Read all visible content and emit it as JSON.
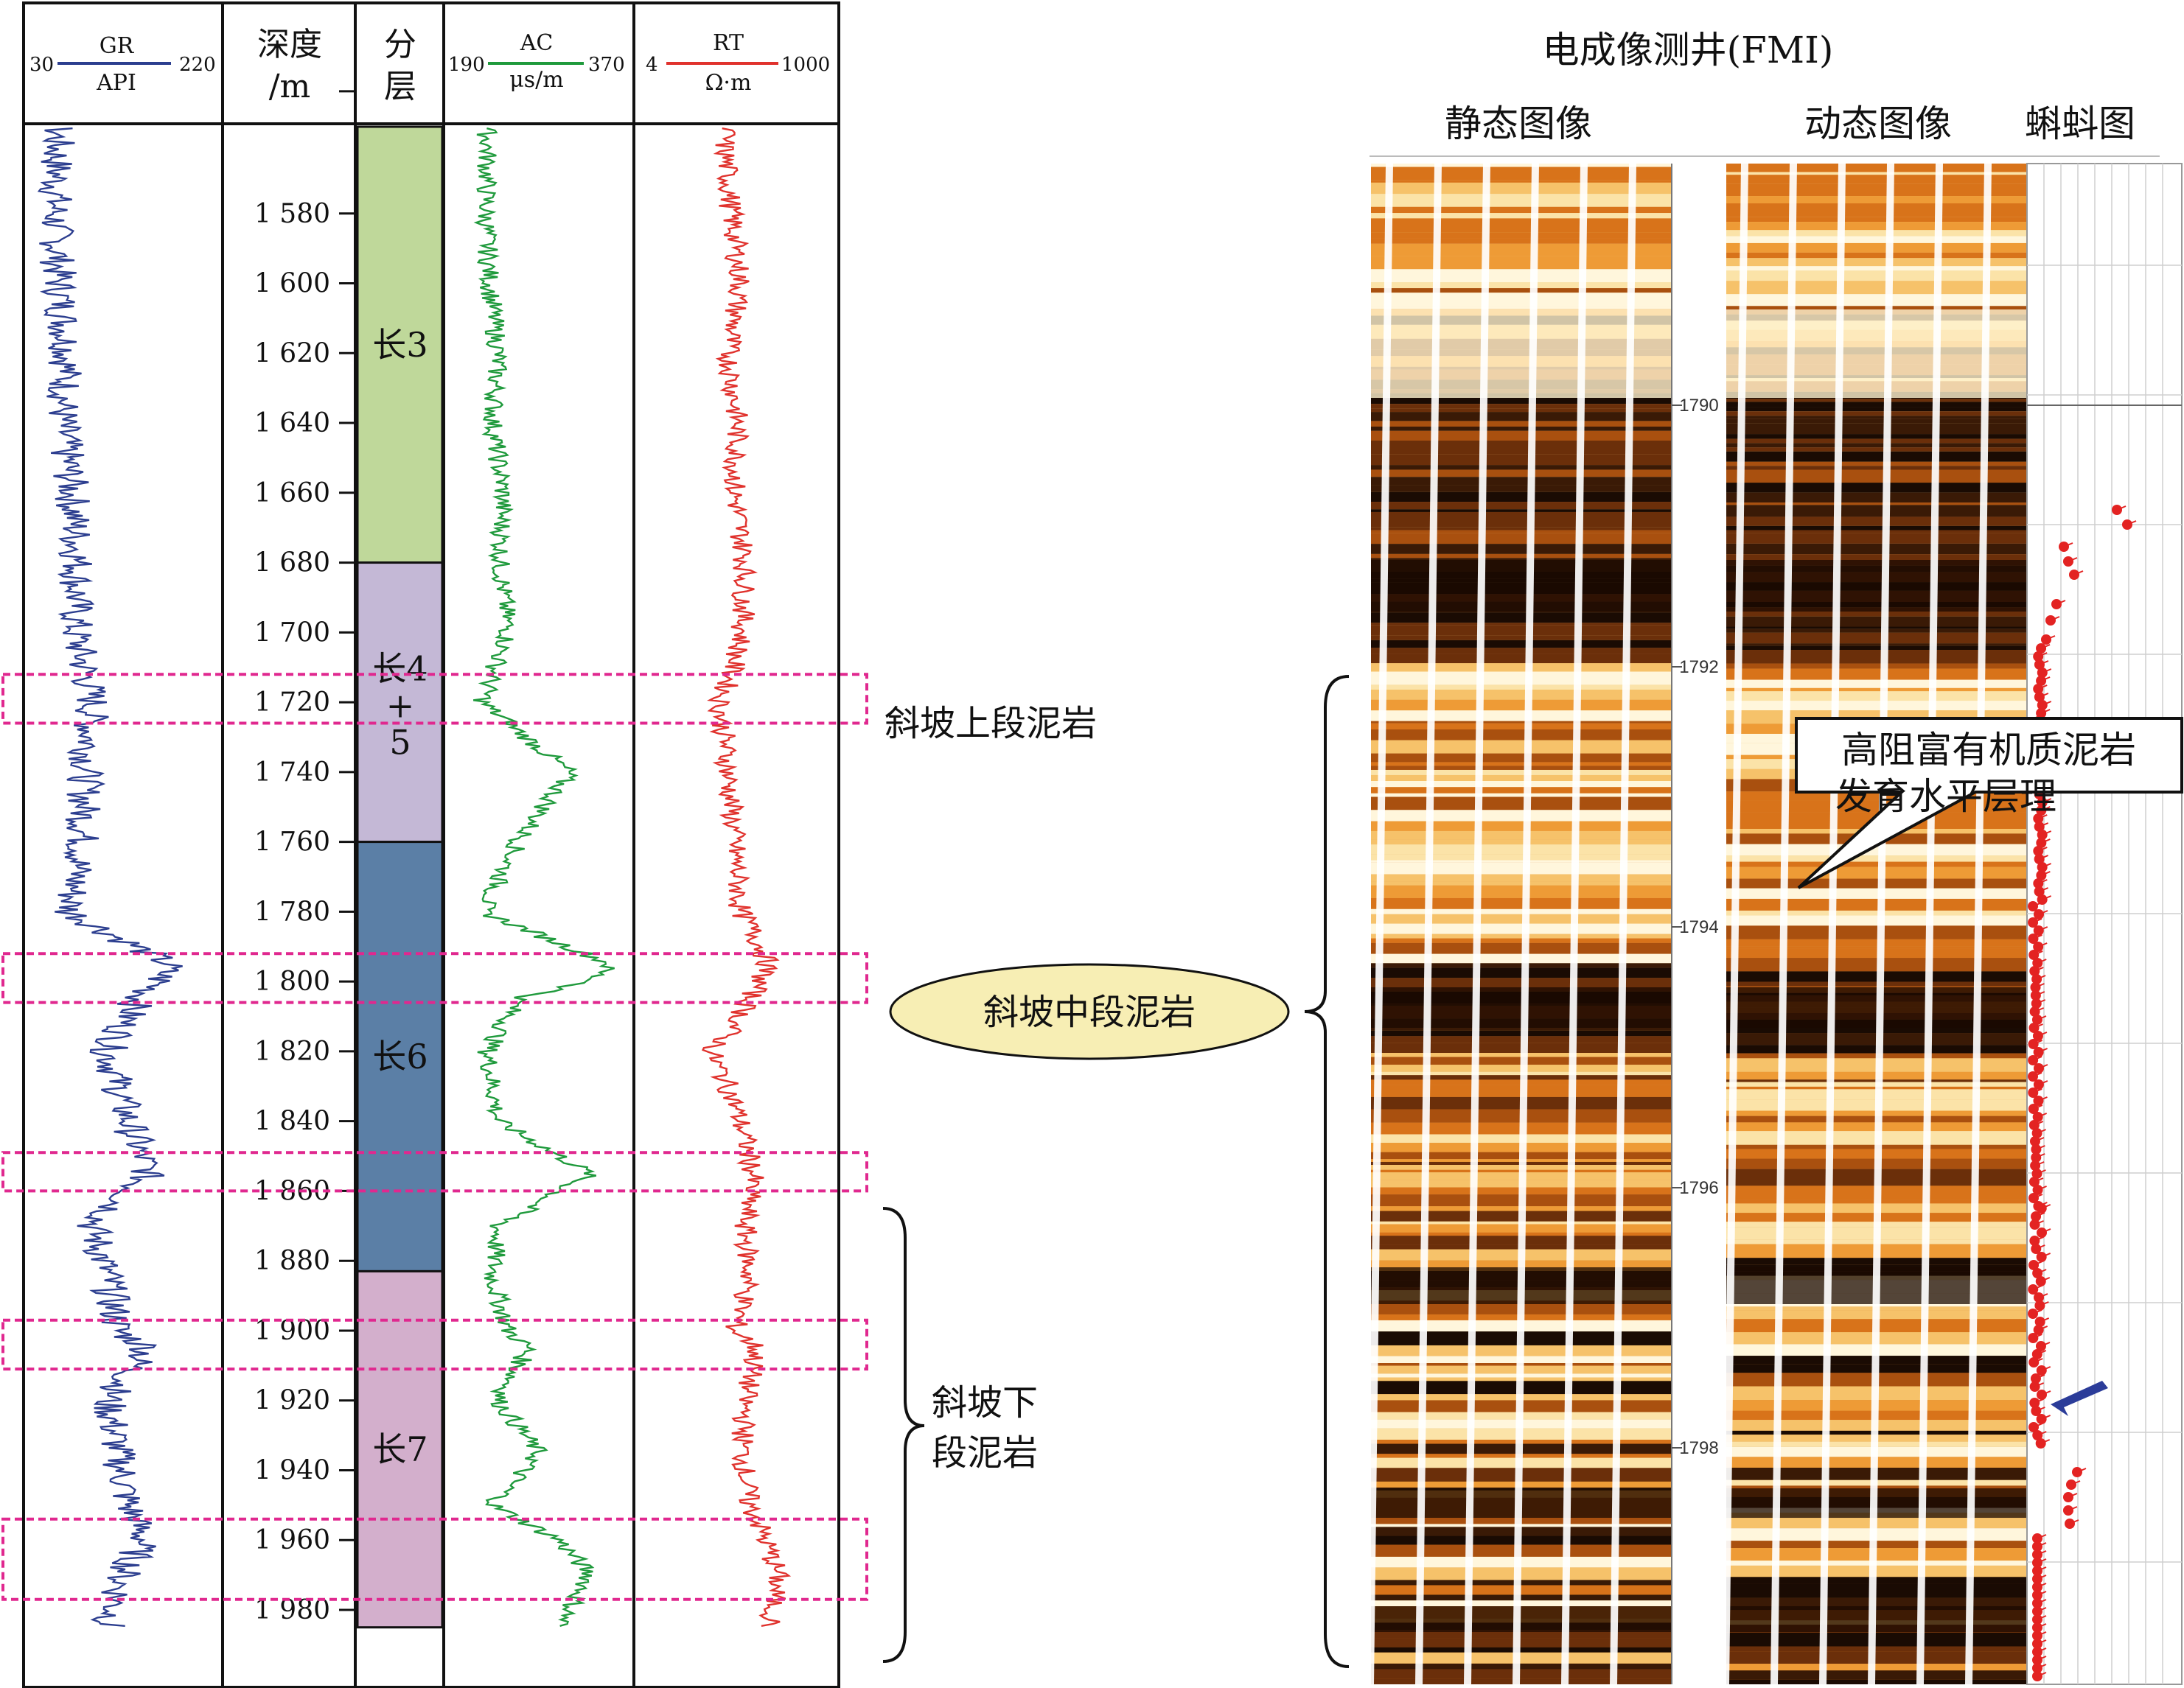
{
  "log_panel": {
    "tracks": {
      "gr": {
        "name": "GR",
        "unit": "API",
        "min": "30",
        "max": "220",
        "color": "#2c3e8f"
      },
      "depth": {
        "title_line1": "深度",
        "title_line2": "/m"
      },
      "layer": {
        "title_line1": "分",
        "title_line2": "层"
      },
      "ac": {
        "name": "AC",
        "unit": "μs/m",
        "min": "190",
        "max": "370",
        "color": "#1f9a3c"
      },
      "rt": {
        "name": "RT",
        "unit": "Ω·m",
        "min": "4",
        "max": "1000",
        "color": "#e0322d"
      }
    },
    "layers": [
      {
        "label": "长3",
        "top": 1540,
        "bottom": 1680,
        "color": "#bfd89a"
      },
      {
        "label_lines": [
          "长4",
          "+",
          "5"
        ],
        "top": 1680,
        "bottom": 1760,
        "color": "#c4b8d6"
      },
      {
        "label": "长6",
        "top": 1760,
        "bottom": 1883,
        "color": "#5b7fa6"
      },
      {
        "label": "长7",
        "top": 1883,
        "bottom": 1985,
        "color": "#d3afcc"
      }
    ],
    "highlight_boxes": [
      {
        "top": 1712,
        "bottom": 1726
      },
      {
        "top": 1792,
        "bottom": 1806
      },
      {
        "top": 1849,
        "bottom": 1860
      },
      {
        "top": 1897,
        "bottom": 1911
      },
      {
        "top": 1954,
        "bottom": 1977
      }
    ],
    "annotations": {
      "upper": "斜坡上段泥岩",
      "middle": "斜坡中段泥岩",
      "lower_line1": "斜坡下",
      "lower_line2": "段泥岩"
    },
    "box_color": "#e0288f",
    "ellipse_color": "#f7eeb4"
  },
  "chart_data": {
    "type": "line",
    "y_axis": {
      "label": "深度/m",
      "range": [
        1540,
        1985
      ],
      "ticks": [
        "1 580",
        "1 600",
        "1 620",
        "1 640",
        "1 660",
        "1 680",
        "1 700",
        "1 720",
        "1 740",
        "1 760",
        "1 780",
        "1 800",
        "1 820",
        "1 840",
        "1 860",
        "1 880",
        "1 900",
        "1 920",
        "1 940",
        "1 960",
        "1 980"
      ]
    },
    "series": [
      {
        "name": "GR",
        "unit": "API",
        "range": [
          30,
          220
        ],
        "depth": [
          1540,
          1560,
          1580,
          1600,
          1620,
          1640,
          1660,
          1680,
          1700,
          1720,
          1740,
          1760,
          1780,
          1795,
          1800,
          1805,
          1820,
          1840,
          1855,
          1870,
          1885,
          1900,
          1905,
          1920,
          1935,
          1950,
          1960,
          1970,
          1985
        ],
        "values": [
          55,
          60,
          58,
          62,
          70,
          65,
          75,
          80,
          78,
          95,
          88,
          85,
          72,
          170,
          160,
          140,
          110,
          130,
          150,
          95,
          110,
          120,
          150,
          110,
          120,
          130,
          145,
          125,
          110
        ]
      },
      {
        "name": "AC",
        "unit": "μs/m",
        "range": [
          190,
          370
        ],
        "depth": [
          1540,
          1560,
          1580,
          1600,
          1620,
          1640,
          1660,
          1680,
          1700,
          1720,
          1740,
          1760,
          1780,
          1795,
          1800,
          1805,
          1820,
          1840,
          1855,
          1870,
          1885,
          1900,
          1905,
          1920,
          1935,
          1950,
          1960,
          1970,
          1985
        ],
        "values": [
          225,
          230,
          228,
          232,
          240,
          235,
          245,
          242,
          250,
          225,
          310,
          260,
          225,
          350,
          330,
          260,
          230,
          240,
          330,
          240,
          235,
          250,
          270,
          240,
          280,
          235,
          300,
          330,
          300
        ]
      },
      {
        "name": "RT",
        "unit": "Ω·m",
        "range": [
          4,
          1000
        ],
        "depth": [
          1540,
          1560,
          1580,
          1600,
          1620,
          1640,
          1660,
          1680,
          1700,
          1720,
          1740,
          1760,
          1780,
          1795,
          1800,
          1805,
          1820,
          1840,
          1855,
          1870,
          1885,
          1900,
          1905,
          1920,
          1935,
          1950,
          1960,
          1970,
          1985
        ],
        "values": [
          60,
          45,
          55,
          70,
          50,
          65,
          60,
          80,
          75,
          40,
          50,
          60,
          70,
          150,
          120,
          90,
          30,
          70,
          100,
          80,
          90,
          60,
          110,
          80,
          75,
          90,
          140,
          200,
          160
        ]
      }
    ]
  },
  "fmi": {
    "title": "电成像测井(FMI)",
    "static_label": "静态图像",
    "dynamic_label": "动态图像",
    "tadpole_label": "蝌蚪图",
    "depth_ticks": [
      "1790",
      "1792",
      "1794",
      "1796",
      "1798"
    ],
    "callout_line1": "高阻富有机质泥岩",
    "callout_line2": "发育水平层理",
    "tadpole_color": "#e32322",
    "arrow_color": "#2b3c99"
  }
}
